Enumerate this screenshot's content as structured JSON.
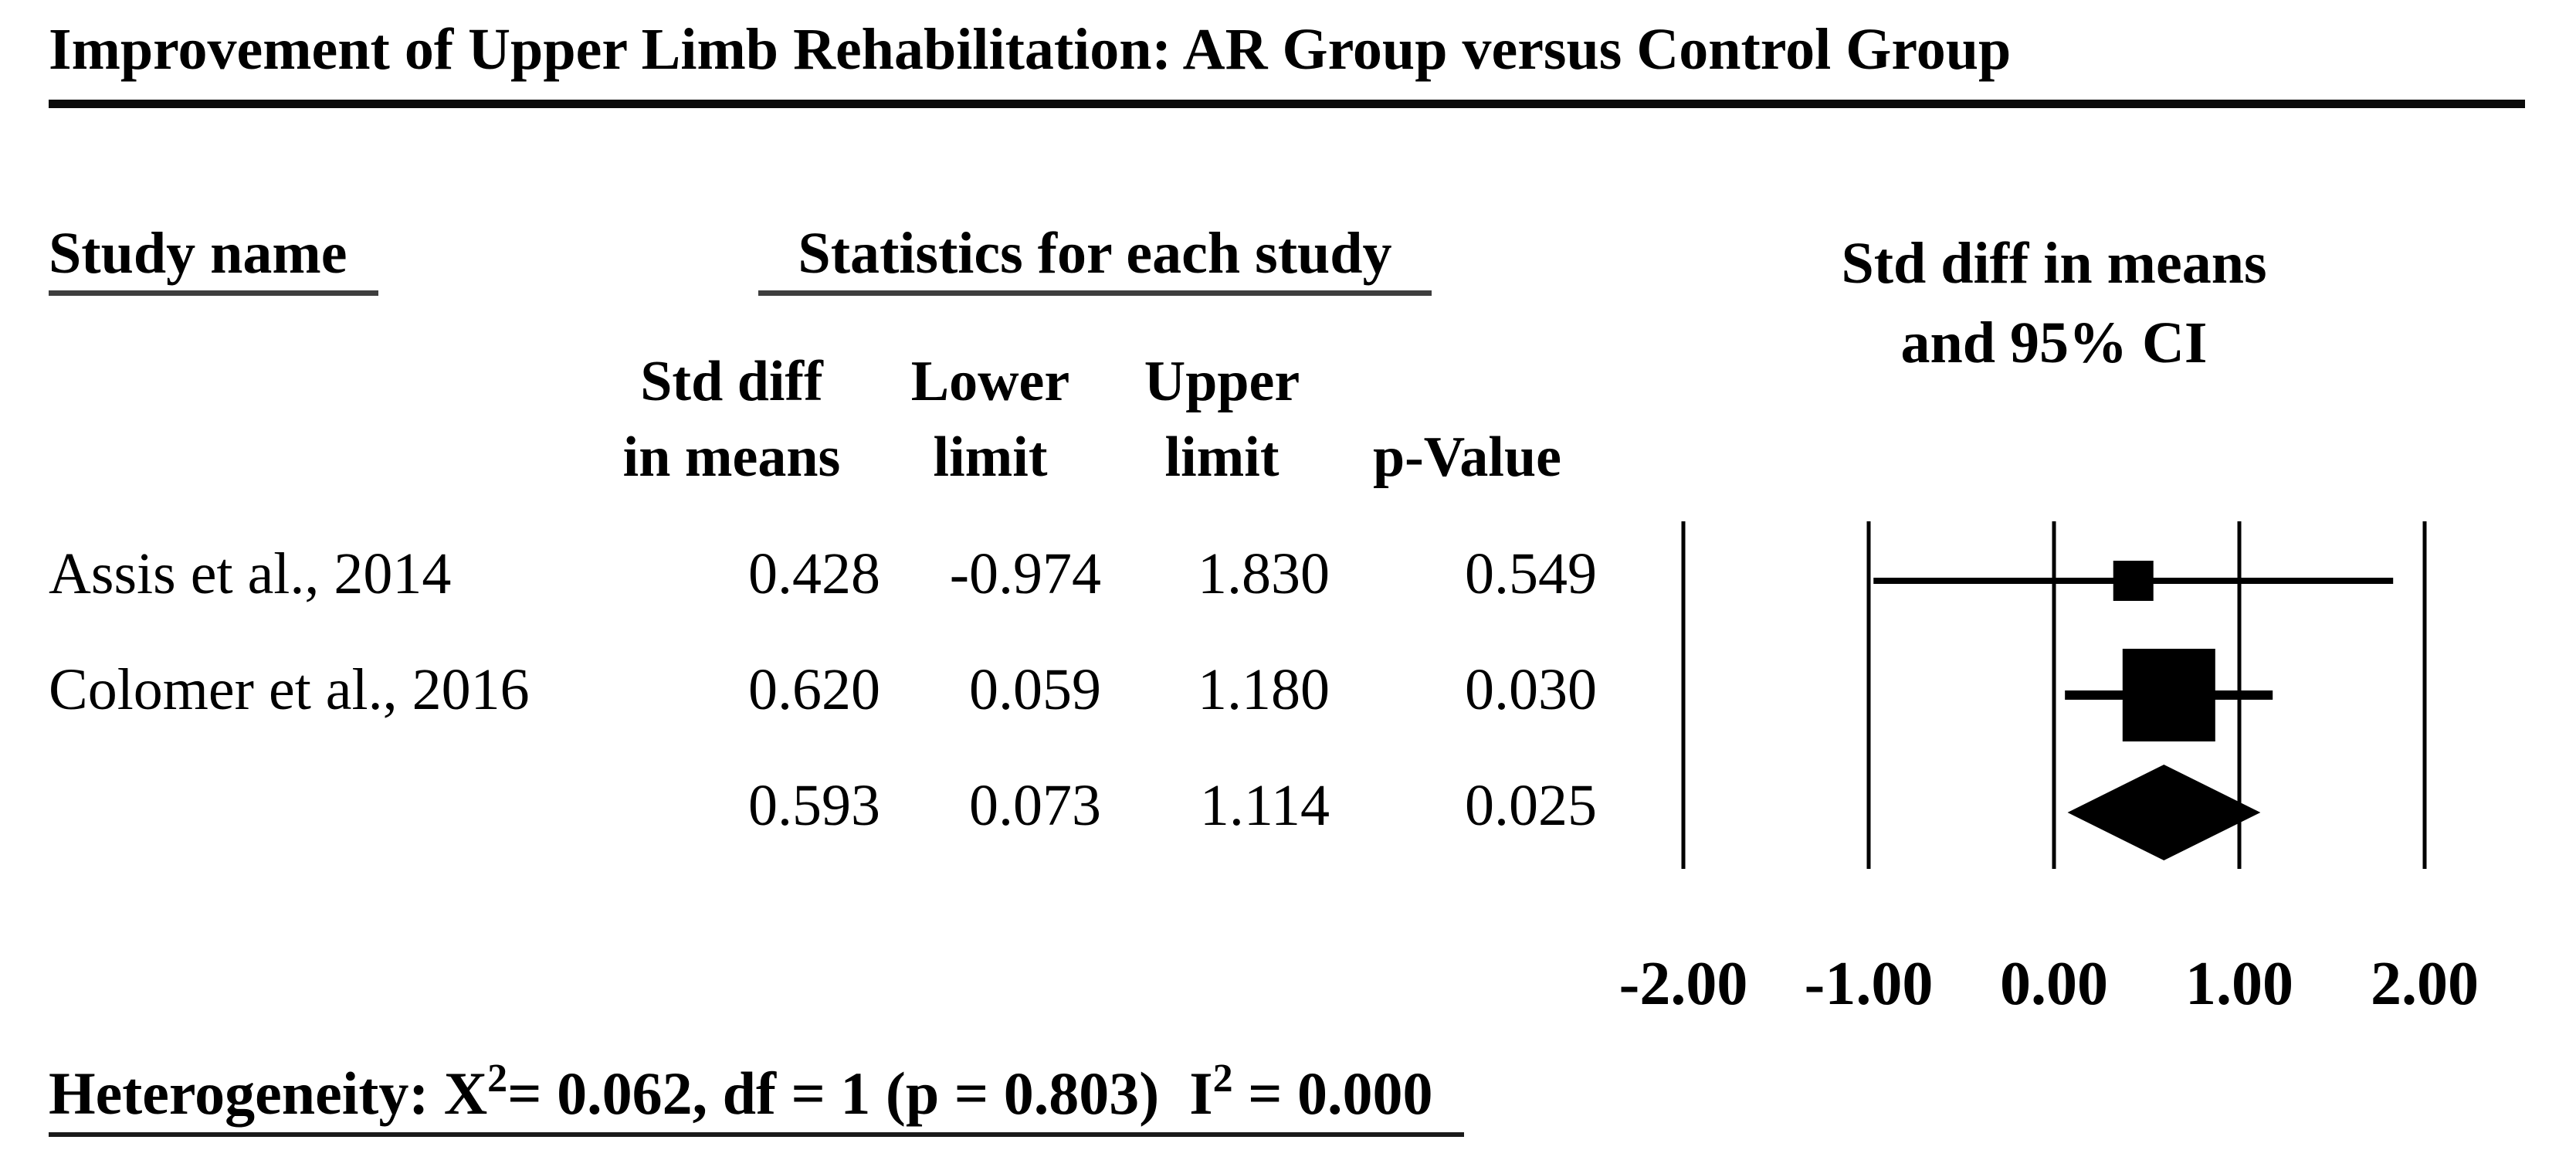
{
  "title": "Improvement of Upper Limb Rehabilitation: AR Group versus Control Group",
  "headers": {
    "study_name": "Study name",
    "statistics": "Statistics for each study",
    "ci_line1": "Std diff in means",
    "ci_line2": "and 95% CI",
    "sub": {
      "std_diff_line1": "Std diff",
      "std_diff_line2": "in means",
      "lower_line1": "Lower",
      "lower_line2": "limit",
      "upper_line1": "Upper",
      "upper_line2": "limit",
      "p_value": "p-Value"
    }
  },
  "table": {
    "rows": [
      {
        "study": "Assis et al., 2014",
        "std_diff": "0.428",
        "lower": "-0.974",
        "upper": "1.830",
        "p_value": "0.549"
      },
      {
        "study": "Colomer et al., 2016",
        "std_diff": "0.620",
        "lower": "0.059",
        "upper": "1.180",
        "p_value": "0.030"
      },
      {
        "study": "",
        "std_diff": "0.593",
        "lower": "0.073",
        "upper": "1.114",
        "p_value": "0.025"
      }
    ]
  },
  "heterogeneity": {
    "part1": "Heterogeneity: X",
    "sup1": "2",
    "part2": "= 0.062, df = 1 (p = 0.803)  I",
    "sup2": "2",
    "part3": " = 0.000"
  },
  "chart_data": {
    "type": "forest",
    "title": "Std diff in means and 95% CI",
    "xlabel": "Std diff in means",
    "xlim": [
      -2,
      2
    ],
    "ticks": [
      -2,
      -1,
      0,
      1,
      2
    ],
    "tick_labels": [
      "-2.00",
      "-1.00",
      "0.00",
      "1.00",
      "2.00"
    ],
    "grid": "vertical-lines",
    "studies": [
      {
        "name": "Assis et al., 2014",
        "std_diff": 0.428,
        "lower": -0.974,
        "upper": 1.83,
        "p_value": 0.549,
        "marker_px": 52,
        "ci_thickness_px": 8
      },
      {
        "name": "Colomer et al., 2016",
        "std_diff": 0.62,
        "lower": 0.059,
        "upper": 1.18,
        "p_value": 0.03,
        "marker_px": 120,
        "ci_thickness_px": 12
      }
    ],
    "summary": {
      "std_diff": 0.593,
      "lower": 0.073,
      "upper": 1.114,
      "p_value": 0.025
    },
    "heterogeneity": {
      "chi_squared": 0.062,
      "df": 1,
      "p": 0.803,
      "i_squared": 0.0
    },
    "colors": {
      "marker": "#000000",
      "line": "#000000",
      "text": "#000000",
      "background": "#ffffff"
    }
  }
}
